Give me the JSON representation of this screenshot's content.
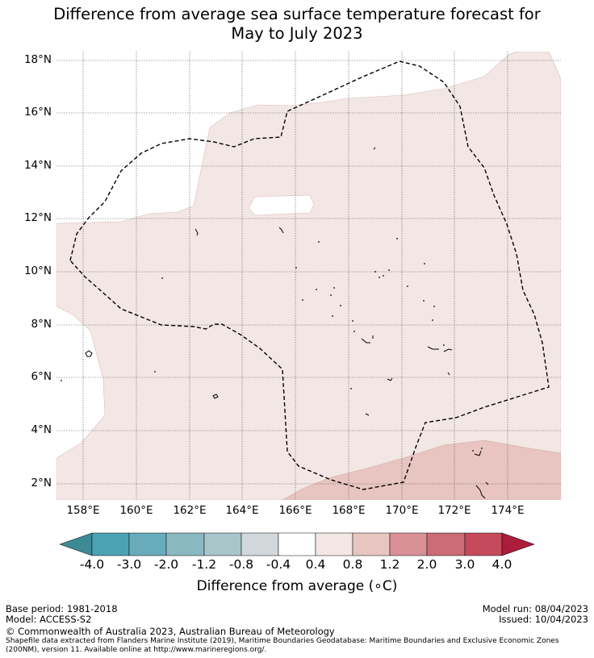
{
  "title": {
    "line1": "Difference from average sea surface temperature forecast for",
    "line2": "May to July 2023"
  },
  "map": {
    "lat_labels": [
      "18°N",
      "16°N",
      "14°N",
      "12°N",
      "10°N",
      "8°N",
      "6°N",
      "4°N",
      "2°N"
    ],
    "lon_labels": [
      "158°E",
      "160°E",
      "162°E",
      "164°E",
      "166°E",
      "168°E",
      "170°E",
      "172°E",
      "174°E"
    ],
    "region": "Marshall Islands EEZ (dashed outline)",
    "shading": {
      "light_anomaly_range": "0.4 to 0.8",
      "medium_anomaly_range": "0.8 to 1.2",
      "white_anomaly_range": "-0.4 to 0.4"
    }
  },
  "colorbar": {
    "ticks": [
      "-4.0",
      "-3.0",
      "-2.0",
      "-1.2",
      "-0.8",
      "-0.4",
      "0.4",
      "0.8",
      "1.2",
      "2.0",
      "3.0",
      "4.0"
    ],
    "colors": [
      "#3d8a96",
      "#4aa3b2",
      "#68acbb",
      "#8ab8c1",
      "#a8c6ca",
      "#d1d9da",
      "#ffffff",
      "#f3e7e5",
      "#e8c5c0",
      "#d99097",
      "#cb6c77",
      "#c44a5c",
      "#ab1d3b"
    ],
    "label": "Difference from average (∘C)"
  },
  "footer": {
    "base_period": "Base period: 1981-2018",
    "model": "Model: ACCESS-S2",
    "model_run": "Model run: 08/04/2023",
    "issued": "Issued: 10/04/2023",
    "copyright": "© Commonwealth of Australia 2023, Australian Bureau of Meteorology",
    "source": "Shapefile data extracted from Flanders Marine Institute (2019), Maritime Boundaries Geodatabase: Maritime Boundaries and Exclusive Economic Zones (200NM), version 11. Available online at http://www.marineregions.org/."
  }
}
